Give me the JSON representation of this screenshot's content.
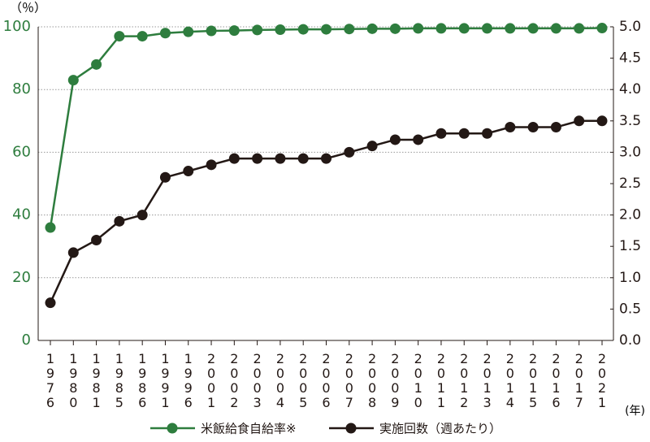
{
  "chart_data": {
    "type": "line",
    "y_label": "（％）",
    "x_label": "(年)",
    "categories": [
      "1976",
      "1980",
      "1981",
      "1985",
      "1986",
      "1991",
      "1996",
      "2001",
      "2002",
      "2003",
      "2004",
      "2005",
      "2006",
      "2007",
      "2008",
      "2009",
      "2010",
      "2011",
      "2012",
      "2013",
      "2014",
      "2015",
      "2016",
      "2017",
      "2021"
    ],
    "ylim": [
      0,
      100
    ],
    "yticks": [
      0,
      20,
      40,
      60,
      80,
      100
    ],
    "ytick_color": "#2e7d3e",
    "y2lim": [
      0,
      5
    ],
    "y2ticks": [
      {
        "value": 0,
        "label": "0.0"
      },
      0.5,
      {
        "value": 1,
        "label": "1.0"
      },
      1.5,
      {
        "value": 2,
        "label": "2.0"
      },
      2.5,
      {
        "value": 3,
        "label": "3.0"
      },
      3.5,
      {
        "value": 4,
        "label": "4.0"
      },
      4.5,
      {
        "value": 5,
        "label": "5.0"
      }
    ],
    "grid": true,
    "series": [
      {
        "name": "米飯給食自給率※",
        "color": "#2e7d3e",
        "axis": "y",
        "values": [
          36,
          83,
          88,
          97,
          97,
          98,
          98.4,
          98.7,
          98.8,
          99,
          99.1,
          99.2,
          99.2,
          99.3,
          99.4,
          99.4,
          99.5,
          99.5,
          99.5,
          99.5,
          99.5,
          99.5,
          99.5,
          99.5,
          99.6
        ]
      },
      {
        "name": "実施回数（週あたり）",
        "color": "#231815",
        "axis": "y2",
        "values": [
          0.6,
          1.4,
          1.6,
          1.9,
          2.0,
          2.6,
          2.7,
          2.8,
          2.9,
          2.9,
          2.9,
          2.9,
          2.9,
          3.0,
          3.1,
          3.2,
          3.2,
          3.3,
          3.3,
          3.3,
          3.4,
          3.4,
          3.4,
          3.5,
          3.5
        ]
      }
    ]
  }
}
